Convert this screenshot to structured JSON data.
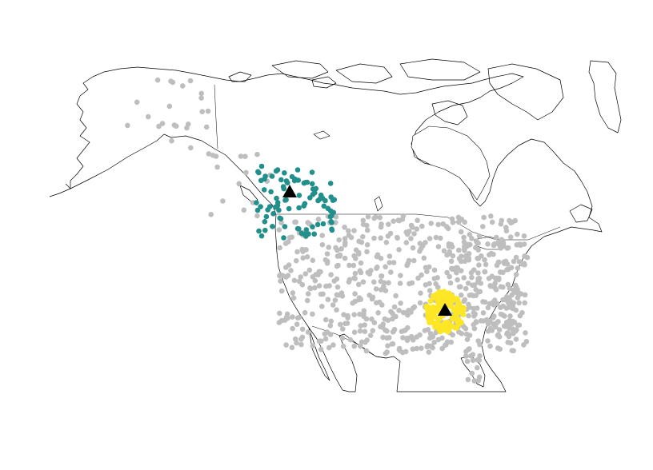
{
  "map": {
    "type": "point-cluster-map",
    "region": "North America",
    "colors": {
      "background_points": "#bebebe",
      "cluster_north": "#21908c",
      "cluster_south": "#fde725",
      "markers": "#000000",
      "outline": "#000000"
    },
    "markers": [
      {
        "name": "marker-north",
        "cluster": "north"
      },
      {
        "name": "marker-south",
        "cluster": "south"
      }
    ],
    "clusters": [
      {
        "name": "north",
        "color": "#21908c"
      },
      {
        "name": "south",
        "color": "#fde725"
      }
    ]
  }
}
